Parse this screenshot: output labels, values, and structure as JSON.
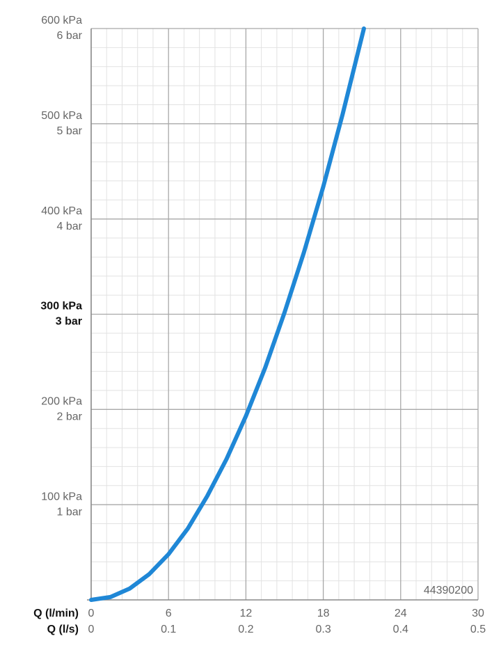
{
  "chart_data": {
    "type": "line",
    "xlabel": "Q (l/min)",
    "x2label": "Q (l/s)",
    "annotation": "44390200",
    "x": [
      0,
      1.5,
      3,
      4.5,
      6,
      7.5,
      9,
      10.5,
      12,
      13.5,
      15,
      16.5,
      18,
      19.5,
      21.15
    ],
    "series": [
      {
        "color": "#1f87d6",
        "values": [
          0,
          3,
          12,
          27,
          48,
          75,
          109,
          148,
          193,
          244,
          302,
          365,
          434,
          510,
          600
        ]
      }
    ],
    "xlim": [
      0,
      30
    ],
    "xticks": [
      0,
      6,
      12,
      18,
      24,
      30
    ],
    "x2lim": [
      0,
      0.5
    ],
    "x2ticks": [
      0,
      0.1,
      0.2,
      0.3,
      0.4,
      0.5
    ],
    "ylim": [
      0,
      600
    ],
    "yticks": [
      {
        "value": 100,
        "label": "100 kPa"
      },
      {
        "value": 200,
        "label": "200 kPa"
      },
      {
        "value": 300,
        "label": "300 kPa"
      },
      {
        "value": 400,
        "label": "400 kPa"
      },
      {
        "value": 500,
        "label": "500 kPa"
      },
      {
        "value": 600,
        "label": "600 kPa"
      }
    ],
    "y2lim": [
      0,
      6
    ],
    "y2ticks": [
      {
        "value": 1,
        "label": "1 bar"
      },
      {
        "value": 2,
        "label": "2 bar"
      },
      {
        "value": 3,
        "label": "3 bar"
      },
      {
        "value": 4,
        "label": "4 bar"
      },
      {
        "value": 5,
        "label": "5 bar"
      },
      {
        "value": 6,
        "label": "6 bar"
      }
    ],
    "bold_ytick": 300,
    "grid": true,
    "minor_divisions": 5
  }
}
